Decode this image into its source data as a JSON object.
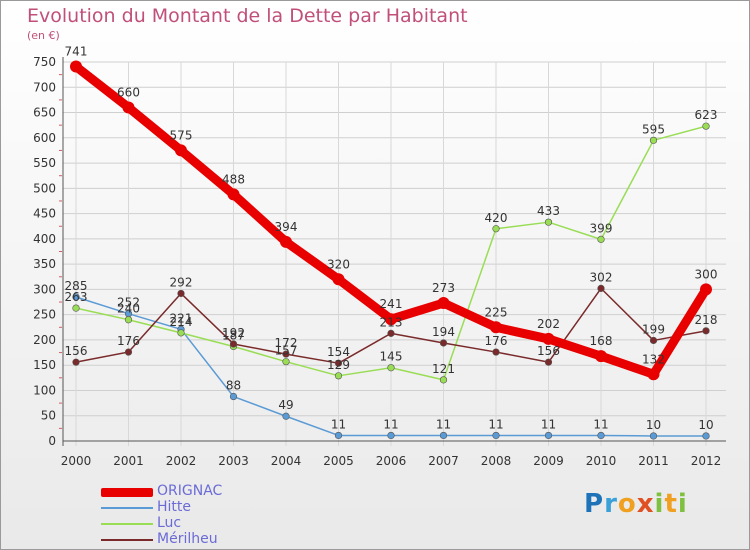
{
  "header": {
    "title": "Evolution du Montant de la Dette par Habitant",
    "unit": "(en €)"
  },
  "chart_data": {
    "type": "line",
    "title": "Evolution du Montant de la Dette par Habitant",
    "ylabel": "(en €)",
    "xlabel": "",
    "ylim": [
      0,
      750
    ],
    "yticks": [
      0,
      50,
      100,
      150,
      200,
      250,
      300,
      350,
      400,
      450,
      500,
      550,
      600,
      650,
      700,
      750
    ],
    "categories": [
      "2000",
      "2001",
      "2002",
      "2003",
      "2004",
      "2005",
      "2006",
      "2007",
      "2008",
      "2009",
      "2010",
      "2011",
      "2012"
    ],
    "grid": true,
    "series": [
      {
        "name": "ORIGNAC",
        "color": "#e80000",
        "values": [
          741,
          660,
          575,
          488,
          394,
          320,
          241,
          273,
          225,
          202,
          168,
          132,
          300
        ]
      },
      {
        "name": "Hitte",
        "color": "#5b9bd5",
        "values": [
          285,
          252,
          221,
          88,
          49,
          11,
          11,
          11,
          11,
          11,
          11,
          10,
          10
        ]
      },
      {
        "name": "Luc",
        "color": "#99dd55",
        "values": [
          263,
          240,
          214,
          187,
          157,
          129,
          145,
          121,
          420,
          433,
          399,
          595,
          623
        ]
      },
      {
        "name": "Mérilheu",
        "color": "#7a2a2a",
        "values": [
          156,
          176,
          292,
          192,
          172,
          154,
          213,
          194,
          176,
          156,
          302,
          199,
          218
        ]
      }
    ]
  },
  "legend": {
    "items": [
      {
        "label": "ORIGNAC",
        "color": "#e80000"
      },
      {
        "label": "Hitte",
        "color": "#5b9bd5"
      },
      {
        "label": "Luc",
        "color": "#99dd55"
      },
      {
        "label": "Mérilheu",
        "color": "#7a2a2a"
      }
    ]
  },
  "logo": {
    "letters": [
      "P",
      "r",
      "o",
      "x",
      "i",
      "t",
      "i"
    ],
    "colors": [
      "#1e73b8",
      "#3aa0d8",
      "#f0a020",
      "#e05020",
      "#80c040",
      "#f0a020",
      "#80c040"
    ]
  }
}
